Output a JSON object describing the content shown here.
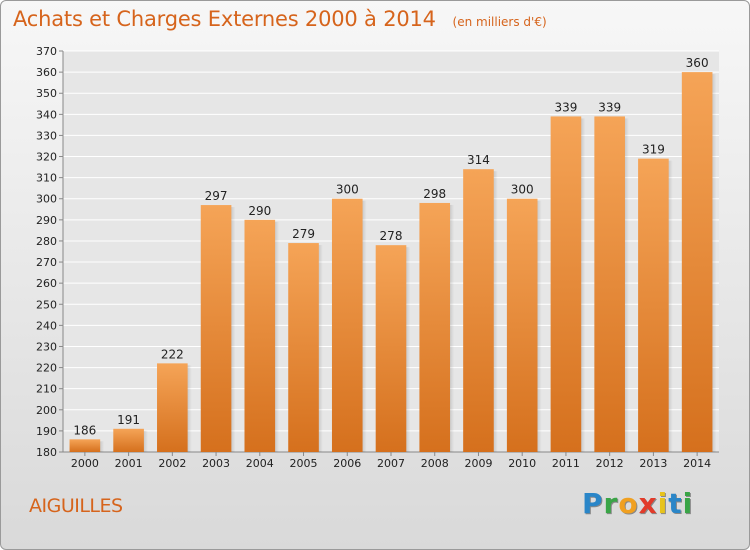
{
  "chart_data": {
    "type": "bar",
    "title": "Achats et Charges Externes 2000 à 2014",
    "unit_note": "(en milliers d'€)",
    "categories": [
      "2000",
      "2001",
      "2002",
      "2003",
      "2004",
      "2005",
      "2006",
      "2007",
      "2008",
      "2009",
      "2010",
      "2011",
      "2012",
      "2013",
      "2014"
    ],
    "values": [
      186,
      191,
      222,
      297,
      290,
      279,
      300,
      278,
      298,
      314,
      300,
      339,
      339,
      319,
      360
    ],
    "ylim": [
      180,
      370
    ],
    "ytick_step": 10,
    "grid": true,
    "bar_color_top": "#f5a457",
    "bar_color_bottom": "#d5701d"
  },
  "footer": {
    "commune": "AIGUILLES",
    "logo": "Proxiti"
  }
}
